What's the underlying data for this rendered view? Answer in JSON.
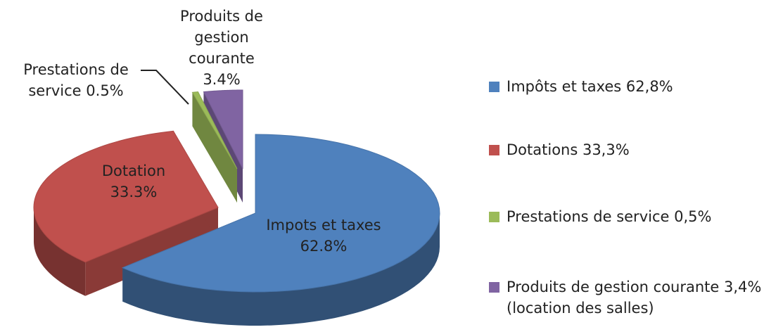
{
  "chart_data": {
    "type": "pie",
    "slice_labels": [
      "Impots et taxes",
      "Dotation",
      "Prestations de service",
      "Produits de gestion courante"
    ],
    "values": [
      62.8,
      33.3,
      0.5,
      3.4
    ],
    "value_labels": [
      "62.8%",
      "33.3%",
      "0.5%",
      "3.4%"
    ],
    "categories": [
      "Impôts et taxes 62,8%",
      "Dotations 33,3%",
      "Prestations de service 0,5%",
      "Produits de gestion courante 3,4% (location des salles)"
    ],
    "colors": [
      "#4f81bd",
      "#c0504d",
      "#9bbb59",
      "#8064a2"
    ],
    "legend": "right"
  }
}
